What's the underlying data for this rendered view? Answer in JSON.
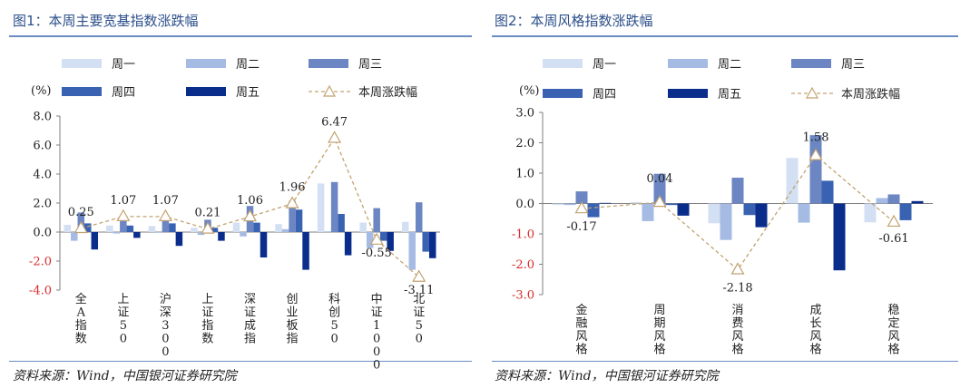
{
  "panels": [
    {
      "title": "图1：本周主要宽基指数涨跌幅",
      "source": "资料来源：Wind，中国银河证券研究院"
    },
    {
      "title": "图2：本周风格指数涨跌幅",
      "source": "资料来源：Wind，中国银河证券研究院"
    }
  ],
  "colors": {
    "title": "#2b4f8a",
    "rule": "#6a8cc4",
    "mon": "#d3dff2",
    "tue": "#a6bbe4",
    "wed": "#6b86c2",
    "thu": "#3a62b3",
    "fri": "#0a2d8c",
    "line": "#c2a270",
    "axis_neg": "#d92b2b"
  },
  "chart_data": [
    {
      "type": "bar",
      "unit": "(%)",
      "categories": [
        "全A指数",
        "上证50",
        "沪深300",
        "上证指数",
        "深证成指",
        "创业板指",
        "科创50",
        "中证1000",
        "北证50"
      ],
      "ylim": [
        -4,
        8
      ],
      "yticks": [
        -4,
        -2,
        0,
        2,
        4,
        6,
        8
      ],
      "ytick_labels": [
        "-4.0",
        "-2.0",
        "0.0",
        "2.0",
        "4.0",
        "6.0",
        "8.0"
      ],
      "legend": [
        "周一",
        "周二",
        "周三",
        "周四",
        "周五",
        "本周涨跌幅"
      ],
      "series": [
        {
          "name": "周一",
          "values": [
            0.5,
            0.45,
            0.42,
            0.3,
            0.65,
            0.55,
            3.35,
            0.65,
            0.7
          ]
        },
        {
          "name": "周二",
          "values": [
            -0.6,
            -0.1,
            -0.05,
            -0.2,
            -0.3,
            0.2,
            0.05,
            -1.1,
            -2.6
          ]
        },
        {
          "name": "周三",
          "values": [
            1.35,
            0.8,
            0.75,
            0.85,
            1.8,
            2.15,
            3.45,
            1.65,
            2.05
          ]
        },
        {
          "name": "周四",
          "values": [
            0.6,
            0.45,
            0.6,
            0.3,
            0.65,
            1.55,
            1.25,
            -0.6,
            -1.35
          ]
        },
        {
          "name": "周五",
          "values": [
            -1.2,
            -0.4,
            -0.95,
            -0.6,
            -1.75,
            -2.6,
            -1.6,
            -1.3,
            -1.8
          ]
        }
      ],
      "line": {
        "name": "本周涨跌幅",
        "values": [
          0.25,
          1.07,
          1.07,
          0.21,
          1.06,
          1.96,
          6.47,
          -0.55,
          -3.11
        ],
        "labels": [
          "0.25",
          "1.07",
          "1.07",
          "0.21",
          "1.06",
          "1.96",
          "6.47",
          "-0.55",
          "-3.11"
        ]
      }
    },
    {
      "type": "bar",
      "unit": "(%)",
      "categories": [
        "金融风格",
        "周期风格",
        "消费风格",
        "成长风格",
        "稳定风格"
      ],
      "ylim": [
        -3,
        3
      ],
      "yticks": [
        -3,
        -2,
        -1,
        0,
        1,
        2,
        3
      ],
      "ytick_labels": [
        "-3.0",
        "-2.0",
        "-1.0",
        "0.0",
        "1.0",
        "2.0",
        "3.0"
      ],
      "legend": [
        "周一",
        "周二",
        "周三",
        "周四",
        "周五",
        "本周涨跌幅"
      ],
      "series": [
        {
          "name": "周一",
          "values": [
            -0.05,
            0.05,
            -0.65,
            1.5,
            -0.62
          ]
        },
        {
          "name": "周二",
          "values": [
            -0.05,
            -0.58,
            -1.2,
            -0.63,
            0.18
          ]
        },
        {
          "name": "周三",
          "values": [
            0.4,
            0.98,
            0.85,
            2.25,
            0.3
          ]
        },
        {
          "name": "周四",
          "values": [
            -0.45,
            -0.05,
            -0.38,
            0.75,
            -0.55
          ]
        },
        {
          "name": "周五",
          "values": [
            0.02,
            -0.4,
            -0.78,
            -2.2,
            0.08
          ]
        }
      ],
      "line": {
        "name": "本周涨跌幅",
        "values": [
          -0.17,
          0.04,
          -2.18,
          1.58,
          -0.61
        ],
        "labels": [
          "-0.17",
          "0.04",
          "-2.18",
          "1.58",
          "-0.61"
        ]
      }
    }
  ]
}
